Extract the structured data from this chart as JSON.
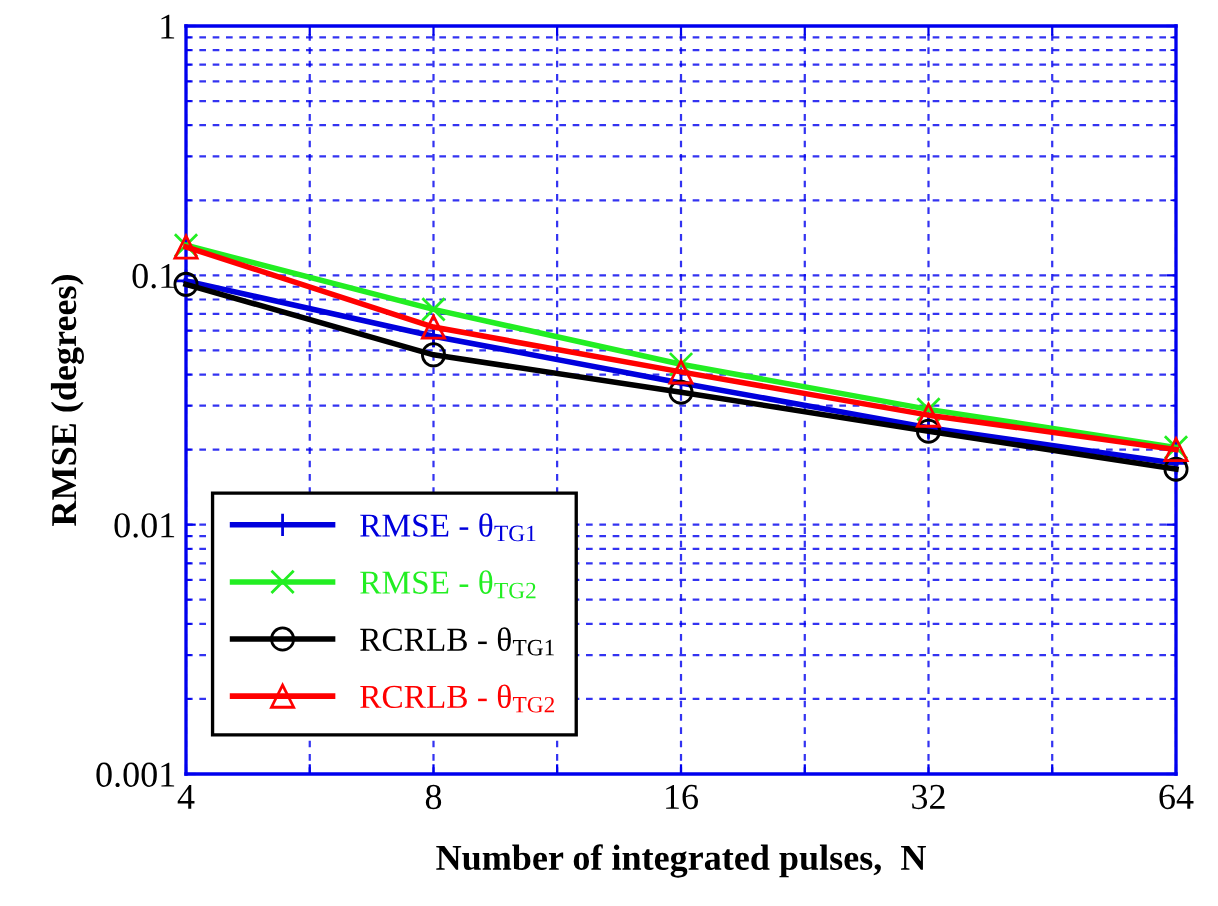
{
  "chart_data": {
    "type": "line",
    "xlabel": "Number of integrated pulses,  N",
    "ylabel": "RMSE (degrees)",
    "x": [
      4,
      8,
      16,
      32,
      64
    ],
    "series": [
      {
        "name": "RMSE - θ$_{TG1}$",
        "color": "#0000dd",
        "marker": "plus",
        "values": [
          0.095,
          0.057,
          0.037,
          0.0245,
          0.0176
        ]
      },
      {
        "name": "RMSE - θ$_{TG2}$",
        "color": "#22ee22",
        "marker": "cross",
        "values": [
          0.132,
          0.073,
          0.044,
          0.029,
          0.0204
        ]
      },
      {
        "name": "RCRLB - θ$_{TG1}$",
        "color": "#000000",
        "marker": "circle",
        "values": [
          0.092,
          0.048,
          0.034,
          0.0237,
          0.0167
        ]
      },
      {
        "name": "RCRLB - θ$_{TG2}$",
        "color": "#ff0000",
        "marker": "triangle",
        "values": [
          0.13,
          0.062,
          0.041,
          0.0275,
          0.02
        ]
      }
    ],
    "log": "xy",
    "xlim": [
      4,
      64
    ],
    "xticks": [
      4,
      {
        "value": 5.657,
        "label": null
      },
      8,
      {
        "value": 11.31,
        "label": null
      },
      16,
      {
        "value": 22.63,
        "label": null
      },
      32,
      {
        "value": 45.25,
        "label": null
      },
      64
    ],
    "ylim": [
      0.001,
      1
    ],
    "yticks": [
      0.001,
      0.01,
      0.1,
      1
    ],
    "grid": true,
    "legend": "lower left",
    "line_style": "solid"
  }
}
